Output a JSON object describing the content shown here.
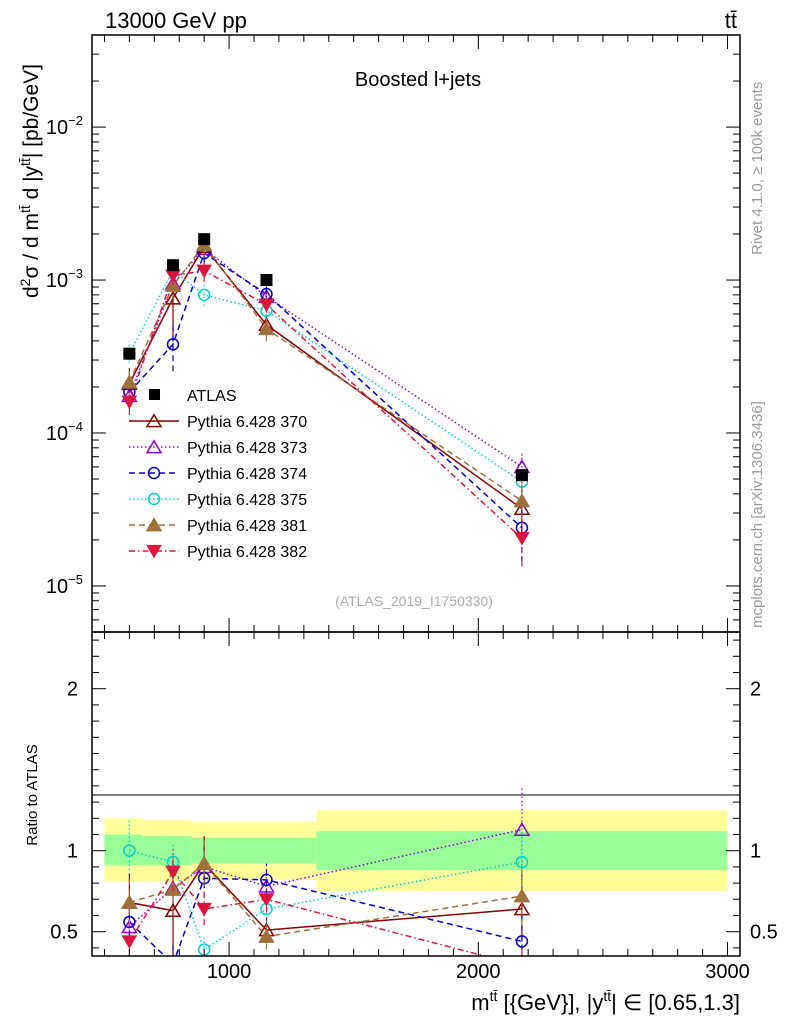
{
  "header": {
    "left": "13000 GeV pp",
    "right": "tt̄"
  },
  "side_labels": {
    "rivet": "Rivet 4.1.0, ≥ 100k events",
    "mcplots": "mcplots.cern.ch [arXiv:1306.3436]"
  },
  "chart_data": {
    "type": "scatter",
    "title": "Boosted l+jets",
    "analysis_tag": "(ATLAS_2019_I1750330)",
    "ylabel_main": "d²σ / d mᵗᵗ d |yᵗᵗ| [pb/GeV]",
    "ylabel_ratio": "Ratio to ATLAS",
    "xlabel": "m^{tt} [{GeV}], |y^{tt}| ∈ [0.65,1.3]",
    "xlim": [
      450,
      3050
    ],
    "ylim_main": [
      5e-06,
      0.04
    ],
    "ylim_ratio": [
      0.35,
      2.35
    ],
    "x_ticks": [
      1000,
      2000,
      3000
    ],
    "y_ticks_main": [
      {
        "value": 1e-05,
        "mant": "10",
        "exp": "−5"
      },
      {
        "value": 0.0001,
        "mant": "10",
        "exp": "−4"
      },
      {
        "value": 0.001,
        "mant": "10",
        "exp": "−3"
      },
      {
        "value": 0.01,
        "mant": "10",
        "exp": "−2"
      }
    ],
    "y_ticks_ratio": [
      {
        "value": 0.5,
        "label": "0.5"
      },
      {
        "value": 1,
        "label": "1"
      },
      {
        "value": 2,
        "label": "2"
      }
    ],
    "bands": [
      {
        "x0": 500,
        "x1": 650,
        "yellow": [
          0.81,
          1.2
        ],
        "green": [
          0.91,
          1.1
        ]
      },
      {
        "x0": 650,
        "x1": 850,
        "yellow": [
          0.81,
          1.19
        ],
        "green": [
          0.91,
          1.09
        ]
      },
      {
        "x0": 850,
        "x1": 950,
        "yellow": [
          0.82,
          1.18
        ],
        "green": [
          0.92,
          1.08
        ]
      },
      {
        "x0": 950,
        "x1": 1350,
        "yellow": [
          0.82,
          1.18
        ],
        "green": [
          0.92,
          1.08
        ]
      },
      {
        "x0": 1350,
        "x1": 3000,
        "yellow": [
          0.75,
          1.25
        ],
        "green": [
          0.88,
          1.12
        ]
      }
    ],
    "data": {
      "name": "ATLAS",
      "x": [
        600,
        775,
        900,
        1150,
        2175
      ],
      "y": [
        0.00033,
        0.00125,
        0.00185,
        0.001,
        5.3e-05
      ]
    },
    "series": [
      {
        "name": "Pythia 6.428 370",
        "color": "#8b0000",
        "marker": "triangle-open",
        "dash": "",
        "x": [
          600,
          775,
          900,
          1150,
          2175
        ],
        "y": [
          0.00021,
          0.00076,
          0.00165,
          0.00051,
          3.2e-05
        ],
        "ratio": [
          0.68,
          0.63,
          0.92,
          0.51,
          0.64
        ],
        "err_lo": [
          0.16,
          0.3,
          0.15,
          0.08,
          0.2
        ],
        "err_hi": [
          0.18,
          0.3,
          0.17,
          0.08,
          0.22
        ]
      },
      {
        "name": "Pythia 6.428 373",
        "color": "#9400d3",
        "marker": "triangle-open",
        "dash": "1.5,2.5",
        "x": [
          600,
          775,
          900,
          1150,
          2175
        ],
        "y": [
          0.000175,
          0.00095,
          0.0016,
          0.00078,
          6e-05
        ],
        "ratio": [
          0.53,
          0.77,
          0.9,
          0.78,
          1.13
        ],
        "err_lo": [
          0.1,
          0.12,
          0.12,
          0.1,
          0.25
        ],
        "err_hi": [
          0.12,
          0.14,
          0.14,
          0.12,
          0.26
        ]
      },
      {
        "name": "Pythia 6.428 374",
        "color": "#0000cd",
        "marker": "circle-open",
        "dash": "6,4",
        "x": [
          600,
          775,
          900,
          1150,
          2175
        ],
        "y": [
          0.000185,
          0.00038,
          0.0015,
          0.00081,
          2.4e-05
        ],
        "ratio": [
          0.56,
          0.3,
          0.83,
          0.82,
          0.44
        ],
        "err_lo": [
          0.1,
          0.1,
          0.12,
          0.1,
          0.18
        ],
        "err_hi": [
          0.12,
          0.12,
          0.12,
          0.1,
          0.2
        ]
      },
      {
        "name": "Pythia 6.428 375",
        "color": "#00ced1",
        "marker": "circle-open",
        "dash": "1.5,2.5",
        "x": [
          600,
          775,
          900,
          1150,
          2175
        ],
        "y": [
          0.00033,
          0.00115,
          0.0008,
          0.00063,
          4.8e-05
        ],
        "ratio": [
          1.0,
          0.93,
          0.39,
          0.64,
          0.93
        ],
        "err_lo": [
          0.12,
          0.1,
          0.06,
          0.08,
          0.2
        ],
        "err_hi": [
          0.2,
          0.12,
          0.08,
          0.1,
          0.22
        ]
      },
      {
        "name": "Pythia 6.428 381",
        "color": "#a0703a",
        "marker": "triangle-filled",
        "dash": "6,4",
        "x": [
          600,
          775,
          900,
          1150,
          2175
        ],
        "y": [
          0.000215,
          0.00092,
          0.0017,
          0.00048,
          3.6e-05
        ],
        "ratio": [
          0.68,
          0.76,
          0.92,
          0.47,
          0.72
        ],
        "err_lo": [
          0.14,
          0.14,
          0.14,
          0.08,
          0.18
        ],
        "err_hi": [
          0.16,
          0.16,
          0.16,
          0.08,
          0.2
        ]
      },
      {
        "name": "Pythia 6.428 382",
        "color": "#dc143c",
        "marker": "triangle-down-filled",
        "dash": "6,3,1.5,3",
        "x": [
          600,
          775,
          900,
          1150,
          2175
        ],
        "y": [
          0.00016,
          0.00107,
          0.00115,
          0.00069,
          2.05e-05
        ],
        "ratio": [
          0.44,
          0.87,
          0.64,
          0.7,
          0.29
        ],
        "err_lo": [
          0.08,
          0.12,
          0.1,
          0.08,
          0.1
        ],
        "err_hi": [
          0.1,
          0.14,
          0.12,
          0.08,
          0.12
        ]
      }
    ]
  }
}
